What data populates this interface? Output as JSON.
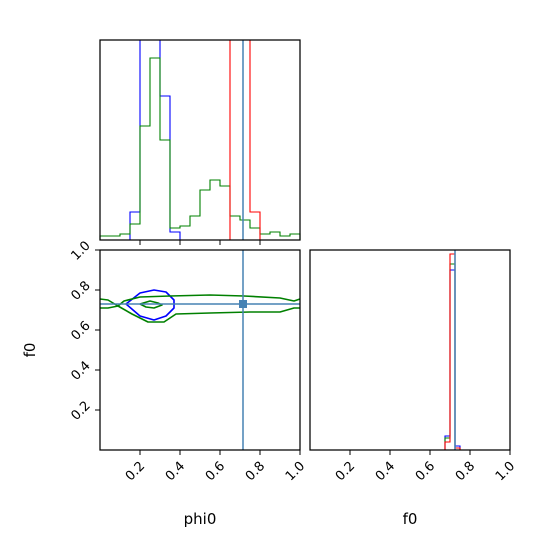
{
  "chart_data": [
    {
      "type": "histogram",
      "panel": "phi0 marginal",
      "xlim": [
        0,
        1
      ],
      "ticks": [
        0.2,
        0.4,
        0.6,
        0.8
      ],
      "bins": [
        0.0,
        0.05,
        0.1,
        0.15,
        0.2,
        0.25,
        0.3,
        0.35,
        0.4,
        0.45,
        0.5,
        0.55,
        0.6,
        0.65,
        0.7,
        0.75,
        0.8,
        0.85,
        0.9,
        0.95,
        1.0
      ],
      "ymax": 1.0,
      "series": [
        {
          "color": "#0000ff",
          "values": [
            0.0,
            0.0,
            0.0,
            0.14,
            1.2,
            1.2,
            0.72,
            0.04,
            0.0,
            0.0,
            0.0,
            0.0,
            0.0,
            0.0,
            0.0,
            0.0,
            0.0,
            0.0,
            0.0,
            0.0
          ]
        },
        {
          "color": "#008000",
          "values": [
            0.02,
            0.02,
            0.03,
            0.08,
            0.57,
            0.91,
            0.5,
            0.06,
            0.07,
            0.12,
            0.25,
            0.3,
            0.27,
            0.12,
            0.1,
            0.06,
            0.03,
            0.04,
            0.02,
            0.03
          ]
        },
        {
          "color": "#ff0000",
          "values": [
            0.0,
            0.0,
            0.0,
            0.0,
            0.0,
            0.0,
            0.0,
            0.0,
            0.0,
            0.0,
            0.0,
            0.0,
            0.0,
            1.2,
            1.2,
            0.14,
            0.0,
            0.0,
            0.0,
            0.0
          ]
        }
      ],
      "truth": 0.715,
      "truth_color": "#4682b4"
    },
    {
      "type": "contour",
      "panel": "phi0 vs f0",
      "xlabel": "phi0",
      "ylabel": "f0",
      "xlim": [
        0,
        1
      ],
      "ylim": [
        0,
        1
      ],
      "xticks": [
        "0.2",
        "0.4",
        "0.6",
        "0.8",
        "1.0"
      ],
      "yticks": [
        "0.2",
        "0.4",
        "0.6",
        "0.8",
        "1.0"
      ],
      "series": [
        {
          "color": "#0000ff",
          "points": [
            [
              0.13,
              0.73
            ],
            [
              0.2,
              0.785
            ],
            [
              0.27,
              0.8
            ],
            [
              0.33,
              0.79
            ],
            [
              0.37,
              0.75
            ],
            [
              0.37,
              0.71
            ],
            [
              0.33,
              0.67
            ],
            [
              0.27,
              0.65
            ],
            [
              0.2,
              0.67
            ],
            [
              0.13,
              0.73
            ]
          ]
        },
        {
          "color": "#008000",
          "points": [
            [
              0.0,
              0.755
            ],
            [
              0.04,
              0.75
            ],
            [
              0.09,
              0.72
            ],
            [
              0.12,
              0.745
            ],
            [
              0.2,
              0.765
            ],
            [
              0.35,
              0.77
            ],
            [
              0.55,
              0.775
            ],
            [
              0.72,
              0.77
            ],
            [
              0.9,
              0.76
            ],
            [
              0.97,
              0.745
            ],
            [
              1.0,
              0.755
            ]
          ]
        },
        {
          "color": "#008000",
          "points": [
            [
              0.0,
              0.71
            ],
            [
              0.04,
              0.71
            ],
            [
              0.09,
              0.72
            ],
            [
              0.16,
              0.68
            ],
            [
              0.24,
              0.64
            ],
            [
              0.32,
              0.64
            ],
            [
              0.38,
              0.68
            ],
            [
              0.55,
              0.685
            ],
            [
              0.75,
              0.69
            ],
            [
              0.9,
              0.69
            ],
            [
              0.97,
              0.71
            ],
            [
              1.0,
              0.71
            ]
          ]
        },
        {
          "color": "#008000",
          "points": [
            [
              0.2,
              0.73
            ],
            [
              0.25,
              0.745
            ],
            [
              0.29,
              0.735
            ],
            [
              0.31,
              0.725
            ],
            [
              0.27,
              0.71
            ],
            [
              0.23,
              0.715
            ],
            [
              0.2,
              0.73
            ]
          ]
        }
      ],
      "truth": {
        "x": 0.715,
        "y": 0.73
      },
      "truth_color": "#4682b4"
    },
    {
      "type": "histogram",
      "panel": "f0 marginal",
      "xlabel": "f0",
      "xlim": [
        0,
        1
      ],
      "xticks": [
        "0.2",
        "0.4",
        "0.6",
        "0.8",
        "1.0"
      ],
      "bins": [
        0.675,
        0.7,
        0.725,
        0.75,
        0.775
      ],
      "ymax": 1.0,
      "series": [
        {
          "color": "#0000ff",
          "values": [
            0.07,
            0.9,
            0.02,
            0.0
          ]
        },
        {
          "color": "#008000",
          "values": [
            0.06,
            0.93,
            0.01,
            0.0
          ]
        },
        {
          "color": "#ff0000",
          "values": [
            0.04,
            0.98,
            0.01,
            0.0
          ]
        }
      ],
      "truth": 0.725,
      "truth_color": "#4682b4"
    }
  ]
}
